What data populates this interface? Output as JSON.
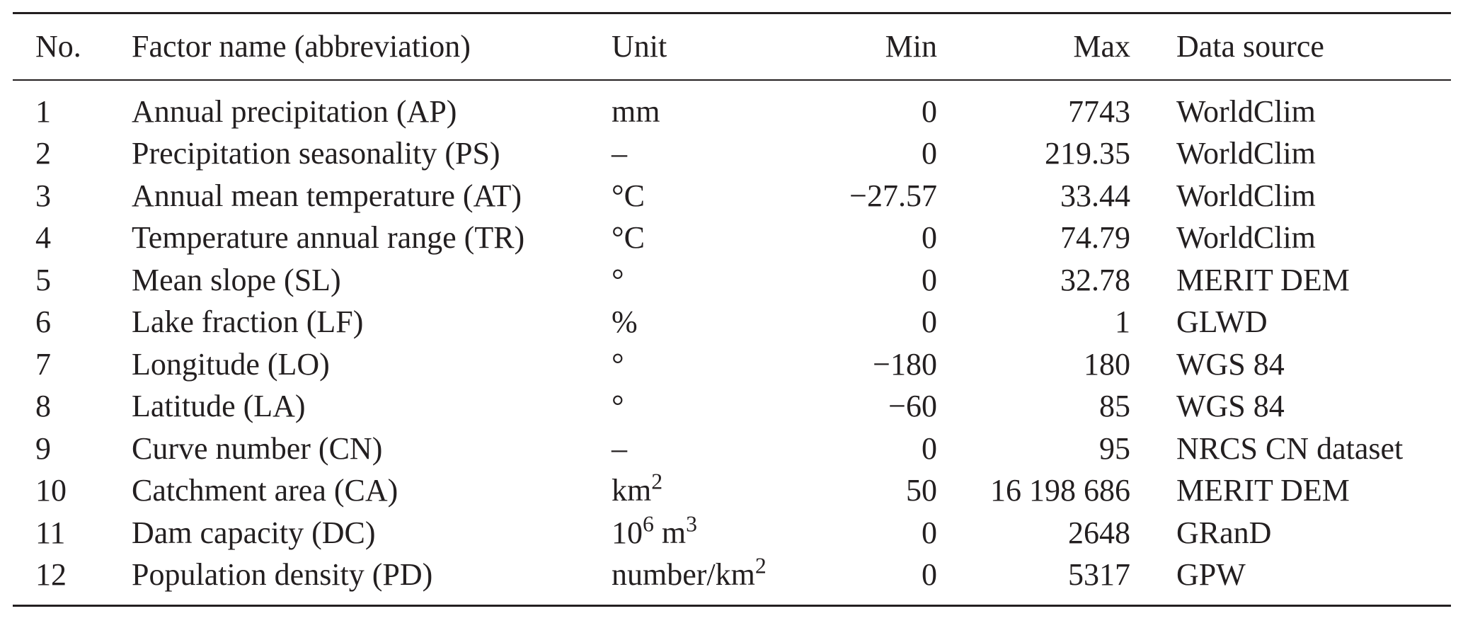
{
  "table": {
    "headers": {
      "no": "No.",
      "name": "Factor name (abbreviation)",
      "unit": "Unit",
      "min": "Min",
      "max": "Max",
      "source": "Data source"
    },
    "rows": [
      {
        "no": "1",
        "name": "Annual precipitation (AP)",
        "unit_base": "mm",
        "unit_sup": "",
        "unit_mid": "",
        "unit_sup2": "",
        "min": "0",
        "max": "7743",
        "source": "WorldClim"
      },
      {
        "no": "2",
        "name": "Precipitation seasonality (PS)",
        "unit_base": "–",
        "unit_sup": "",
        "unit_mid": "",
        "unit_sup2": "",
        "min": "0",
        "max": "219.35",
        "source": "WorldClim"
      },
      {
        "no": "3",
        "name": "Annual mean temperature (AT)",
        "unit_base": "°C",
        "unit_sup": "",
        "unit_mid": "",
        "unit_sup2": "",
        "min": "−27.57",
        "max": "33.44",
        "source": "WorldClim"
      },
      {
        "no": "4",
        "name": "Temperature annual range (TR)",
        "unit_base": "°C",
        "unit_sup": "",
        "unit_mid": "",
        "unit_sup2": "",
        "min": "0",
        "max": "74.79",
        "source": "WorldClim"
      },
      {
        "no": "5",
        "name": "Mean slope (SL)",
        "unit_base": "°",
        "unit_sup": "",
        "unit_mid": "",
        "unit_sup2": "",
        "min": "0",
        "max": "32.78",
        "source": "MERIT DEM"
      },
      {
        "no": "6",
        "name": "Lake fraction (LF)",
        "unit_base": "%",
        "unit_sup": "",
        "unit_mid": "",
        "unit_sup2": "",
        "min": "0",
        "max": "1",
        "source": "GLWD"
      },
      {
        "no": "7",
        "name": "Longitude (LO)",
        "unit_base": "°",
        "unit_sup": "",
        "unit_mid": "",
        "unit_sup2": "",
        "min": "−180",
        "max": "180",
        "source": "WGS 84"
      },
      {
        "no": "8",
        "name": "Latitude (LA)",
        "unit_base": "°",
        "unit_sup": "",
        "unit_mid": "",
        "unit_sup2": "",
        "min": "−60",
        "max": "85",
        "source": "WGS 84"
      },
      {
        "no": "9",
        "name": "Curve number (CN)",
        "unit_base": "–",
        "unit_sup": "",
        "unit_mid": "",
        "unit_sup2": "",
        "min": "0",
        "max": "95",
        "source": "NRCS CN dataset"
      },
      {
        "no": "10",
        "name": "Catchment area (CA)",
        "unit_base": "km",
        "unit_sup": "2",
        "unit_mid": "",
        "unit_sup2": "",
        "min": "50",
        "max": "16 198 686",
        "source": "MERIT DEM"
      },
      {
        "no": "11",
        "name": "Dam capacity (DC)",
        "unit_base": "10",
        "unit_sup": "6",
        "unit_mid": " m",
        "unit_sup2": "3",
        "min": "0",
        "max": "2648",
        "source": "GRanD"
      },
      {
        "no": "12",
        "name": "Population density (PD)",
        "unit_base": "number/km",
        "unit_sup": "2",
        "unit_mid": "",
        "unit_sup2": "",
        "min": "0",
        "max": "5317",
        "source": "GPW"
      }
    ]
  }
}
